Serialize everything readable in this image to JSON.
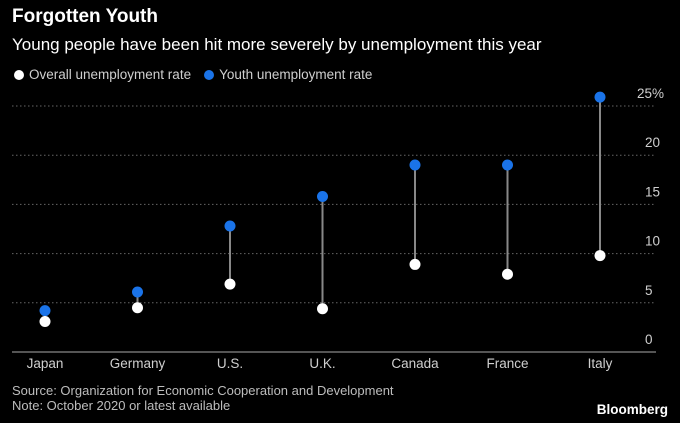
{
  "header": {
    "title": "Forgotten Youth",
    "subtitle": "Young people have been hit more severely by unemployment this year"
  },
  "legend": {
    "overall": "Overall unemployment rate",
    "youth": "Youth unemployment rate"
  },
  "colors": {
    "overall": "#ffffff",
    "youth": "#1a73e8",
    "connector": "#888888",
    "grid": "#666666"
  },
  "chart_data": {
    "type": "dumbbell",
    "title": "Forgotten Youth",
    "subtitle": "Young people have been hit more severely by unemployment this year",
    "categories": [
      "Japan",
      "Germany",
      "U.S.",
      "U.K.",
      "Canada",
      "France",
      "Italy"
    ],
    "series": [
      {
        "name": "Overall unemployment rate",
        "values": [
          3.1,
          4.5,
          6.9,
          4.4,
          8.9,
          7.9,
          9.8
        ]
      },
      {
        "name": "Youth unemployment rate",
        "values": [
          4.2,
          6.1,
          12.8,
          15.8,
          19.0,
          19.0,
          25.9
        ]
      }
    ],
    "y_ticks": [
      "0",
      "5",
      "10",
      "15",
      "20",
      "25%"
    ],
    "y_tick_values": [
      0,
      5,
      10,
      15,
      20,
      25
    ],
    "ylim": [
      0,
      25
    ],
    "grid": true,
    "legend_position": "top-left"
  },
  "footer": {
    "source": "Source: Organization for Economic Cooperation and Development",
    "note": "Note: October 2020 or latest available",
    "brand": "Bloomberg"
  }
}
